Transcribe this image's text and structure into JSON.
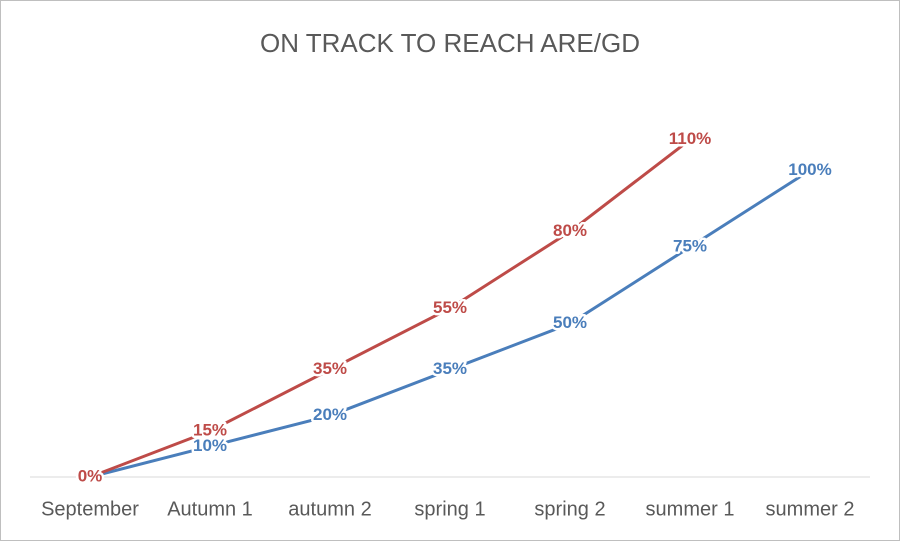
{
  "chart_data": {
    "type": "line",
    "title": "ON TRACK TO REACH ARE/GD",
    "categories": [
      "September",
      "Autumn 1",
      "autumn 2",
      "spring 1",
      "spring 2",
      "summer 1",
      "summer 2"
    ],
    "series": [
      {
        "name": "blue",
        "color": "#4a7ebb",
        "values": [
          0,
          10,
          20,
          35,
          50,
          75,
          100
        ],
        "value_labels": [
          null,
          "10%",
          "20%",
          "35%",
          "50%",
          "75%",
          "100%"
        ]
      },
      {
        "name": "red",
        "color": "#be4b48",
        "values": [
          0,
          15,
          35,
          55,
          80,
          110,
          null
        ],
        "value_labels": [
          "0%",
          "15%",
          "35%",
          "55%",
          "80%",
          "110%",
          null
        ]
      }
    ],
    "ylim": [
      0,
      120
    ]
  }
}
